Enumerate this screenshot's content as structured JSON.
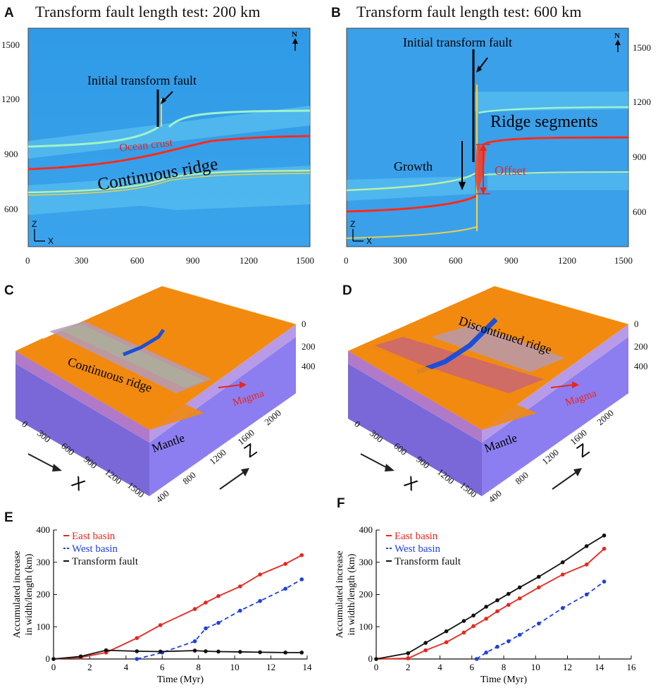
{
  "panels": {
    "A": {
      "letter": "A",
      "title": "Transform fault length test: 200  km",
      "xticks": [
        "0",
        "300",
        "600",
        "900",
        "1200",
        "1500"
      ],
      "yticks": [
        "600",
        "900",
        "1200",
        "1500"
      ],
      "north": "N",
      "axis_z": "Z",
      "axis_x": "X",
      "labels": {
        "initial_fault": "Initial transform fault",
        "ocean_crust": "Ocean crust",
        "continuous_ridge": "Continuous ridge"
      }
    },
    "B": {
      "letter": "B",
      "title": "Transform fault length test: 600  km",
      "xticks": [
        "0",
        "300",
        "600",
        "900",
        "1200",
        "1500"
      ],
      "yticks": [
        "600",
        "900",
        "1200",
        "1500"
      ],
      "north": "N",
      "axis_z": "Z",
      "axis_x": "X",
      "labels": {
        "initial_fault": "Initial transform fault",
        "ridge_segments": "Ridge segments",
        "growth": "Growth",
        "offset": "Offset"
      }
    },
    "C": {
      "letter": "C",
      "ridge": "Continuous ridge",
      "magma": "Magma",
      "mantle": "Mantle",
      "xticks": [
        "0",
        "300",
        "600",
        "900",
        "1200",
        "1500"
      ],
      "zticks": [
        "400",
        "800",
        "1200",
        "1600",
        "2000"
      ],
      "depthticks": [
        "0",
        "200",
        "400"
      ],
      "xaxis": "X",
      "zaxis": "Z"
    },
    "D": {
      "letter": "D",
      "ridge": "Discontinued ridge",
      "magma": "Magma",
      "mantle": "Mantle",
      "xticks": [
        "0",
        "300",
        "600",
        "900",
        "1200",
        "1500"
      ],
      "zticks": [
        "400",
        "800",
        "1200",
        "1600",
        "2000"
      ],
      "depthticks": [
        "0",
        "200",
        "400"
      ],
      "xaxis": "X",
      "zaxis": "Z"
    },
    "E": {
      "letter": "E"
    },
    "F": {
      "letter": "F"
    }
  },
  "chart_data": [
    {
      "id": "E",
      "type": "line",
      "xlabel": "Time (Myr)",
      "ylabel": "Accumulated increase in width/length (km)",
      "ylabel_lines": [
        "Accumulated increase",
        "in width/length (km)"
      ],
      "xlim": [
        0,
        14
      ],
      "ylim": [
        0,
        400
      ],
      "xticks": [
        0,
        2,
        4,
        6,
        8,
        10,
        12,
        14
      ],
      "yticks": [
        0,
        100,
        200,
        300,
        400
      ],
      "legend": "top-left",
      "series": [
        {
          "name": "East basin",
          "color": "#e8261e",
          "dash": false,
          "x": [
            0,
            1.5,
            2.9,
            4.6,
            5.9,
            7.8,
            8.4,
            9.1,
            10.3,
            11.4,
            12.8,
            13.7
          ],
          "y": [
            0,
            5,
            20,
            65,
            105,
            155,
            175,
            195,
            225,
            262,
            295,
            322
          ]
        },
        {
          "name": "West basin",
          "color": "#1f3fe0",
          "dash": true,
          "x": [
            4.6,
            6.0,
            7.8,
            8.4,
            9.1,
            10.3,
            11.4,
            12.8,
            13.7
          ],
          "y": [
            0,
            20,
            55,
            95,
            112,
            150,
            180,
            218,
            247
          ]
        },
        {
          "name": "Transform fault",
          "color": "#111111",
          "dash": false,
          "x": [
            0,
            1.5,
            2.9,
            4.6,
            5.9,
            7.8,
            8.4,
            9.1,
            10.3,
            11.4,
            12.8,
            13.7
          ],
          "y": [
            0,
            8,
            27,
            24,
            23,
            26,
            24,
            23,
            22,
            21,
            20,
            20
          ]
        }
      ]
    },
    {
      "id": "F",
      "type": "line",
      "xlabel": "Time (Myr)",
      "ylabel": "Accumulated increase in width/length (km)",
      "ylabel_lines": [
        "Accumulated increase",
        "in width/length (km)"
      ],
      "xlim": [
        0,
        16
      ],
      "ylim": [
        0,
        400
      ],
      "xticks": [
        0,
        2,
        4,
        6,
        8,
        10,
        12,
        14,
        16
      ],
      "yticks": [
        0,
        100,
        200,
        300,
        400
      ],
      "legend": "top-left",
      "series": [
        {
          "name": "East basin",
          "color": "#e8261e",
          "dash": false,
          "x": [
            0,
            2.0,
            3.1,
            4.4,
            5.5,
            6.1,
            6.9,
            7.6,
            8.3,
            9.0,
            10.2,
            11.7,
            13.2,
            14.3
          ],
          "y": [
            0,
            2,
            27,
            52,
            82,
            102,
            125,
            148,
            168,
            188,
            222,
            262,
            293,
            342
          ]
        },
        {
          "name": "West basin",
          "color": "#1f3fe0",
          "dash": true,
          "x": [
            6.3,
            6.9,
            7.6,
            8.3,
            9.0,
            10.2,
            11.7,
            13.2,
            14.3
          ],
          "y": [
            0,
            20,
            38,
            55,
            75,
            110,
            158,
            200,
            240
          ]
        },
        {
          "name": "Transform fault",
          "color": "#111111",
          "dash": false,
          "x": [
            0,
            2.0,
            3.1,
            4.4,
            5.5,
            6.1,
            6.9,
            7.6,
            8.3,
            9.0,
            10.2,
            11.7,
            13.2,
            14.3
          ],
          "y": [
            0,
            18,
            50,
            86,
            118,
            135,
            162,
            182,
            202,
            222,
            255,
            300,
            350,
            383
          ]
        }
      ]
    }
  ]
}
